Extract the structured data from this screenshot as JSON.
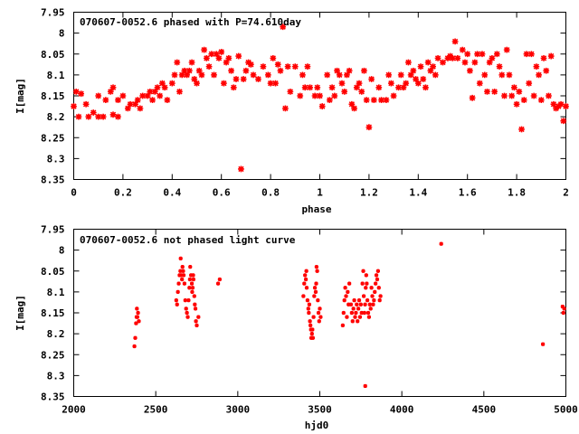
{
  "chart_data": [
    {
      "type": "scatter",
      "title": "070607-0052.6 phased with P=74.610day",
      "xlabel": "phase",
      "ylabel": "I[mag]",
      "xlim": [
        0,
        2
      ],
      "ylim": [
        8.35,
        7.95
      ],
      "y_inverted": true,
      "xticks": [
        0,
        0.2,
        0.4,
        0.6,
        0.8,
        1,
        1.2,
        1.4,
        1.6,
        1.8,
        2
      ],
      "xtick_labels": [
        "0",
        "0.2",
        "0.4",
        "0.6",
        "0.8",
        "1",
        "1.2",
        "1.4",
        "1.6",
        "1.8",
        "2"
      ],
      "yticks": [
        7.95,
        8,
        8.05,
        8.1,
        8.15,
        8.2,
        8.25,
        8.3,
        8.35
      ],
      "ytick_labels": [
        "7.95",
        "8",
        "8.05",
        "8.1",
        "8.15",
        "8.2",
        "8.25",
        "8.3",
        "8.35"
      ],
      "marker_color": "#ff0000",
      "points": [
        [
          0.0,
          8.175
        ],
        [
          0.01,
          8.14
        ],
        [
          0.02,
          8.2
        ],
        [
          0.03,
          8.145
        ],
        [
          0.05,
          8.17
        ],
        [
          0.06,
          8.2
        ],
        [
          0.08,
          8.19
        ],
        [
          0.1,
          8.2
        ],
        [
          0.1,
          8.15
        ],
        [
          0.12,
          8.2
        ],
        [
          0.13,
          8.16
        ],
        [
          0.15,
          8.14
        ],
        [
          0.16,
          8.13
        ],
        [
          0.16,
          8.195
        ],
        [
          0.18,
          8.2
        ],
        [
          0.18,
          8.16
        ],
        [
          0.2,
          8.15
        ],
        [
          0.22,
          8.18
        ],
        [
          0.23,
          8.17
        ],
        [
          0.25,
          8.17
        ],
        [
          0.26,
          8.16
        ],
        [
          0.27,
          8.18
        ],
        [
          0.28,
          8.15
        ],
        [
          0.3,
          8.15
        ],
        [
          0.31,
          8.14
        ],
        [
          0.32,
          8.16
        ],
        [
          0.33,
          8.14
        ],
        [
          0.34,
          8.13
        ],
        [
          0.35,
          8.15
        ],
        [
          0.36,
          8.12
        ],
        [
          0.37,
          8.13
        ],
        [
          0.38,
          8.16
        ],
        [
          0.4,
          8.12
        ],
        [
          0.41,
          8.1
        ],
        [
          0.42,
          8.07
        ],
        [
          0.43,
          8.14
        ],
        [
          0.44,
          8.1
        ],
        [
          0.45,
          8.09
        ],
        [
          0.46,
          8.1
        ],
        [
          0.47,
          8.09
        ],
        [
          0.48,
          8.07
        ],
        [
          0.49,
          8.11
        ],
        [
          0.5,
          8.12
        ],
        [
          0.51,
          8.09
        ],
        [
          0.52,
          8.1
        ],
        [
          0.53,
          8.04
        ],
        [
          0.54,
          8.06
        ],
        [
          0.55,
          8.08
        ],
        [
          0.56,
          8.05
        ],
        [
          0.57,
          8.1
        ],
        [
          0.58,
          8.05
        ],
        [
          0.59,
          8.06
        ],
        [
          0.6,
          8.045
        ],
        [
          0.61,
          8.12
        ],
        [
          0.62,
          8.07
        ],
        [
          0.63,
          8.06
        ],
        [
          0.64,
          8.09
        ],
        [
          0.65,
          8.13
        ],
        [
          0.66,
          8.11
        ],
        [
          0.67,
          8.055
        ],
        [
          0.68,
          8.325
        ],
        [
          0.69,
          8.11
        ],
        [
          0.7,
          8.09
        ],
        [
          0.71,
          8.07
        ],
        [
          0.72,
          8.075
        ],
        [
          0.73,
          8.1
        ],
        [
          0.75,
          8.11
        ],
        [
          0.77,
          8.08
        ],
        [
          0.79,
          8.1
        ],
        [
          0.8,
          8.12
        ],
        [
          0.81,
          8.06
        ],
        [
          0.82,
          8.12
        ],
        [
          0.83,
          8.075
        ],
        [
          0.84,
          8.09
        ],
        [
          0.85,
          7.985
        ],
        [
          0.86,
          8.18
        ],
        [
          0.87,
          8.08
        ],
        [
          0.88,
          8.14
        ],
        [
          0.9,
          8.08
        ],
        [
          0.92,
          8.15
        ],
        [
          0.93,
          8.1
        ],
        [
          0.94,
          8.13
        ],
        [
          0.95,
          8.08
        ],
        [
          0.96,
          8.13
        ],
        [
          0.98,
          8.15
        ],
        [
          0.99,
          8.13
        ],
        [
          1.0,
          8.15
        ],
        [
          1.01,
          8.175
        ],
        [
          1.03,
          8.1
        ],
        [
          1.04,
          8.16
        ],
        [
          1.05,
          8.13
        ],
        [
          1.06,
          8.15
        ],
        [
          1.07,
          8.09
        ],
        [
          1.08,
          8.1
        ],
        [
          1.09,
          8.12
        ],
        [
          1.1,
          8.14
        ],
        [
          1.11,
          8.1
        ],
        [
          1.12,
          8.09
        ],
        [
          1.13,
          8.17
        ],
        [
          1.14,
          8.18
        ],
        [
          1.15,
          8.13
        ],
        [
          1.16,
          8.12
        ],
        [
          1.17,
          8.14
        ],
        [
          1.18,
          8.09
        ],
        [
          1.19,
          8.16
        ],
        [
          1.2,
          8.225
        ],
        [
          1.21,
          8.11
        ],
        [
          1.22,
          8.16
        ],
        [
          1.24,
          8.13
        ],
        [
          1.25,
          8.16
        ],
        [
          1.27,
          8.16
        ],
        [
          1.28,
          8.1
        ],
        [
          1.29,
          8.12
        ],
        [
          1.3,
          8.15
        ],
        [
          1.32,
          8.13
        ],
        [
          1.33,
          8.1
        ],
        [
          1.34,
          8.13
        ],
        [
          1.35,
          8.12
        ],
        [
          1.36,
          8.07
        ],
        [
          1.37,
          8.1
        ],
        [
          1.38,
          8.09
        ],
        [
          1.39,
          8.11
        ],
        [
          1.4,
          8.12
        ],
        [
          1.41,
          8.08
        ],
        [
          1.42,
          8.11
        ],
        [
          1.43,
          8.13
        ],
        [
          1.44,
          8.07
        ],
        [
          1.45,
          8.09
        ],
        [
          1.46,
          8.08
        ],
        [
          1.47,
          8.1
        ],
        [
          1.48,
          8.06
        ],
        [
          1.5,
          8.07
        ],
        [
          1.52,
          8.06
        ],
        [
          1.53,
          8.055
        ],
        [
          1.54,
          8.06
        ],
        [
          1.55,
          8.02
        ],
        [
          1.56,
          8.06
        ],
        [
          1.58,
          8.04
        ],
        [
          1.59,
          8.07
        ],
        [
          1.6,
          8.05
        ],
        [
          1.61,
          8.09
        ],
        [
          1.62,
          8.155
        ],
        [
          1.63,
          8.07
        ],
        [
          1.64,
          8.05
        ],
        [
          1.65,
          8.12
        ],
        [
          1.66,
          8.05
        ],
        [
          1.67,
          8.1
        ],
        [
          1.68,
          8.14
        ],
        [
          1.69,
          8.07
        ],
        [
          1.7,
          8.06
        ],
        [
          1.71,
          8.14
        ],
        [
          1.72,
          8.05
        ],
        [
          1.73,
          8.08
        ],
        [
          1.74,
          8.1
        ],
        [
          1.75,
          8.15
        ],
        [
          1.76,
          8.04
        ],
        [
          1.77,
          8.1
        ],
        [
          1.78,
          8.15
        ],
        [
          1.79,
          8.13
        ],
        [
          1.8,
          8.17
        ],
        [
          1.81,
          8.14
        ],
        [
          1.82,
          8.23
        ],
        [
          1.83,
          8.16
        ],
        [
          1.84,
          8.05
        ],
        [
          1.85,
          8.12
        ],
        [
          1.86,
          8.05
        ],
        [
          1.87,
          8.15
        ],
        [
          1.88,
          8.08
        ],
        [
          1.89,
          8.1
        ],
        [
          1.9,
          8.16
        ],
        [
          1.91,
          8.06
        ],
        [
          1.92,
          8.09
        ],
        [
          1.93,
          8.15
        ],
        [
          1.94,
          8.055
        ],
        [
          1.95,
          8.17
        ],
        [
          1.96,
          8.18
        ],
        [
          1.97,
          8.175
        ],
        [
          1.98,
          8.17
        ],
        [
          1.99,
          8.21
        ],
        [
          2.0,
          8.175
        ]
      ]
    },
    {
      "type": "scatter",
      "title": "070607-0052.6 not phased light curve",
      "xlabel": "hjd0",
      "ylabel": "I[mag]",
      "xlim": [
        2000,
        5000
      ],
      "ylim": [
        8.35,
        7.95
      ],
      "y_inverted": true,
      "xticks": [
        2000,
        2500,
        3000,
        3500,
        4000,
        4500,
        5000
      ],
      "xtick_labels": [
        "2000",
        "2500",
        "3000",
        "3500",
        "4000",
        "4500",
        "5000"
      ],
      "yticks": [
        7.95,
        8,
        8.05,
        8.1,
        8.15,
        8.2,
        8.25,
        8.3,
        8.35
      ],
      "ytick_labels": [
        "7.95",
        "8",
        "8.05",
        "8.1",
        "8.15",
        "8.2",
        "8.25",
        "8.3",
        "8.35"
      ],
      "marker_color": "#ff0000",
      "points": [
        [
          2370,
          8.23
        ],
        [
          2375,
          8.21
        ],
        [
          2380,
          8.175
        ],
        [
          2383,
          8.16
        ],
        [
          2385,
          8.14
        ],
        [
          2388,
          8.16
        ],
        [
          2392,
          8.15
        ],
        [
          2397,
          8.17
        ],
        [
          2625,
          8.12
        ],
        [
          2630,
          8.13
        ],
        [
          2635,
          8.1
        ],
        [
          2640,
          8.08
        ],
        [
          2645,
          8.06
        ],
        [
          2650,
          8.05
        ],
        [
          2652,
          8.02
        ],
        [
          2655,
          8.06
        ],
        [
          2660,
          8.07
        ],
        [
          2663,
          8.04
        ],
        [
          2667,
          8.05
        ],
        [
          2670,
          8.06
        ],
        [
          2675,
          8.08
        ],
        [
          2680,
          8.12
        ],
        [
          2685,
          8.14
        ],
        [
          2690,
          8.15
        ],
        [
          2695,
          8.16
        ],
        [
          2700,
          8.12
        ],
        [
          2705,
          8.09
        ],
        [
          2708,
          8.07
        ],
        [
          2710,
          8.04
        ],
        [
          2715,
          8.06
        ],
        [
          2720,
          8.08
        ],
        [
          2722,
          8.1
        ],
        [
          2725,
          8.09
        ],
        [
          2728,
          8.06
        ],
        [
          2730,
          8.07
        ],
        [
          2735,
          8.11
        ],
        [
          2738,
          8.13
        ],
        [
          2742,
          8.14
        ],
        [
          2745,
          8.17
        ],
        [
          2750,
          8.18
        ],
        [
          2760,
          8.16
        ],
        [
          2880,
          8.08
        ],
        [
          2890,
          8.07
        ],
        [
          3400,
          8.11
        ],
        [
          3405,
          8.08
        ],
        [
          3410,
          8.06
        ],
        [
          3415,
          8.07
        ],
        [
          3418,
          8.05
        ],
        [
          3420,
          8.09
        ],
        [
          3425,
          8.12
        ],
        [
          3430,
          8.14
        ],
        [
          3433,
          8.15
        ],
        [
          3436,
          8.13
        ],
        [
          3440,
          8.17
        ],
        [
          3443,
          8.18
        ],
        [
          3446,
          8.19
        ],
        [
          3448,
          8.21
        ],
        [
          3452,
          8.2
        ],
        [
          3455,
          8.19
        ],
        [
          3458,
          8.21
        ],
        [
          3462,
          8.16
        ],
        [
          3466,
          8.11
        ],
        [
          3470,
          8.09
        ],
        [
          3475,
          8.1
        ],
        [
          3478,
          8.08
        ],
        [
          3480,
          8.04
        ],
        [
          3484,
          8.05
        ],
        [
          3488,
          8.12
        ],
        [
          3492,
          8.15
        ],
        [
          3496,
          8.17
        ],
        [
          3500,
          8.14
        ],
        [
          3505,
          8.16
        ],
        [
          3640,
          8.18
        ],
        [
          3645,
          8.15
        ],
        [
          3650,
          8.12
        ],
        [
          3655,
          8.09
        ],
        [
          3660,
          8.11
        ],
        [
          3665,
          8.16
        ],
        [
          3670,
          8.1
        ],
        [
          3675,
          8.13
        ],
        [
          3680,
          8.08
        ],
        [
          3690,
          8.13
        ],
        [
          3695,
          8.15
        ],
        [
          3700,
          8.17
        ],
        [
          3705,
          8.14
        ],
        [
          3710,
          8.12
        ],
        [
          3715,
          8.16
        ],
        [
          3720,
          8.15
        ],
        [
          3725,
          8.13
        ],
        [
          3730,
          8.17
        ],
        [
          3735,
          8.14
        ],
        [
          3740,
          8.12
        ],
        [
          3745,
          8.16
        ],
        [
          3750,
          8.13
        ],
        [
          3755,
          8.15
        ],
        [
          3760,
          8.08
        ],
        [
          3765,
          8.05
        ],
        [
          3768,
          8.11
        ],
        [
          3772,
          8.15
        ],
        [
          3776,
          8.13
        ],
        [
          3780,
          8.09
        ],
        [
          3783,
          8.06
        ],
        [
          3786,
          8.08
        ],
        [
          3790,
          8.12
        ],
        [
          3795,
          8.15
        ],
        [
          3800,
          8.16
        ],
        [
          3805,
          8.13
        ],
        [
          3810,
          8.14
        ],
        [
          3815,
          8.09
        ],
        [
          3820,
          8.11
        ],
        [
          3825,
          8.13
        ],
        [
          3830,
          8.12
        ],
        [
          3835,
          8.1
        ],
        [
          3840,
          8.08
        ],
        [
          3845,
          8.06
        ],
        [
          3850,
          8.07
        ],
        [
          3855,
          8.05
        ],
        [
          3860,
          8.09
        ],
        [
          3865,
          8.12
        ],
        [
          3870,
          8.11
        ],
        [
          3777,
          8.325
        ],
        [
          4240,
          7.985
        ],
        [
          4860,
          8.225
        ],
        [
          4980,
          8.135
        ],
        [
          4985,
          8.15
        ],
        [
          4990,
          8.14
        ]
      ]
    }
  ]
}
